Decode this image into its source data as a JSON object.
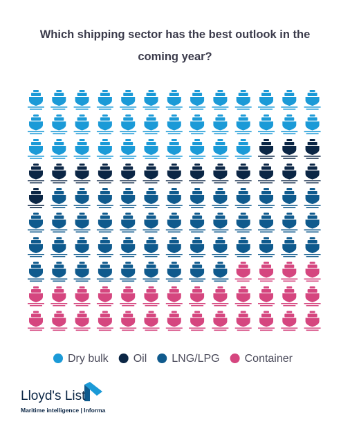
{
  "chart_data": {
    "type": "waffle",
    "title": "Which shipping sector has the best outlook in the coming year?",
    "columns": 13,
    "series": [
      {
        "name": "Dry bulk",
        "color": "#1b9ad7",
        "values": [
          36
        ]
      },
      {
        "name": "Oil",
        "color": "#0b2645",
        "values": [
          17
        ]
      },
      {
        "name": "LNG/LPG",
        "color": "#0f5a8d",
        "values": [
          47
        ]
      },
      {
        "name": "Container",
        "color": "#d5467f",
        "values": [
          30
        ]
      }
    ]
  },
  "logo": {
    "name": "Lloyd's List",
    "tagline": "Maritime intelligence | Informa"
  }
}
